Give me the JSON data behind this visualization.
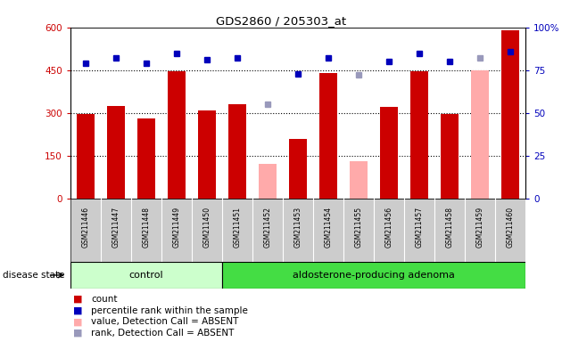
{
  "title": "GDS2860 / 205303_at",
  "samples": [
    "GSM211446",
    "GSM211447",
    "GSM211448",
    "GSM211449",
    "GSM211450",
    "GSM211451",
    "GSM211452",
    "GSM211453",
    "GSM211454",
    "GSM211455",
    "GSM211456",
    "GSM211457",
    "GSM211458",
    "GSM211459",
    "GSM211460"
  ],
  "count_values": [
    295,
    325,
    280,
    445,
    310,
    330,
    null,
    210,
    440,
    null,
    320,
    445,
    295,
    null,
    590
  ],
  "count_absent": [
    null,
    null,
    null,
    null,
    null,
    null,
    120,
    null,
    null,
    130,
    null,
    null,
    null,
    450,
    null
  ],
  "rank_values": [
    79,
    82,
    79,
    85,
    81,
    82,
    null,
    73,
    82,
    null,
    80,
    85,
    80,
    null,
    86
  ],
  "rank_absent": [
    null,
    null,
    null,
    null,
    null,
    null,
    55,
    null,
    null,
    72,
    null,
    null,
    null,
    82,
    null
  ],
  "control_samples": 5,
  "adenoma_samples": 10,
  "ylim_left": [
    0,
    600
  ],
  "ylim_right": [
    0,
    100
  ],
  "yticks_left": [
    0,
    150,
    300,
    450,
    600
  ],
  "yticks_right": [
    0,
    25,
    50,
    75,
    100
  ],
  "bar_color_red": "#cc0000",
  "bar_color_pink": "#ffaaaa",
  "dot_color_blue": "#0000bb",
  "dot_color_lightblue": "#9999bb",
  "control_bg": "#ccffcc",
  "adenoma_bg": "#44dd44",
  "tick_label_bg": "#cccccc",
  "plot_bg": "white",
  "disease_label": "disease state",
  "control_label": "control",
  "adenoma_label": "aldosterone-producing adenoma",
  "legend_items": [
    "count",
    "percentile rank within the sample",
    "value, Detection Call = ABSENT",
    "rank, Detection Call = ABSENT"
  ]
}
